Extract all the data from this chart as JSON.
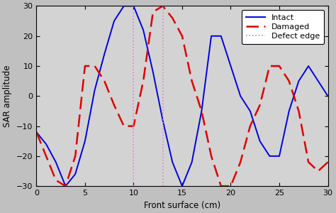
{
  "title": "",
  "xlabel": "Front surface (cm)",
  "ylabel": "SAR amplitude",
  "xlim": [
    0,
    30
  ],
  "ylim": [
    -30,
    30
  ],
  "xticks": [
    0,
    5,
    10,
    15,
    20,
    25,
    30
  ],
  "yticks": [
    -30,
    -20,
    -10,
    0,
    10,
    20,
    30
  ],
  "defect_edges": [
    10,
    13
  ],
  "intact_x": [
    0,
    1,
    2,
    3,
    4,
    5,
    6,
    7,
    8,
    9,
    10,
    11,
    12,
    13,
    14,
    15,
    16,
    17,
    18,
    19,
    20,
    21,
    22,
    23,
    24,
    25,
    26,
    27,
    28,
    29,
    30
  ],
  "intact_y": [
    -12,
    -16,
    -22,
    -30,
    -26,
    -15,
    2,
    14,
    25,
    30,
    30,
    22,
    8,
    -8,
    -22,
    -30,
    -22,
    -5,
    20,
    20,
    10,
    0,
    -5,
    -15,
    -20,
    -20,
    -5,
    5,
    10,
    5,
    0
  ],
  "damaged_x": [
    0,
    1,
    2,
    3,
    4,
    5,
    6,
    7,
    8,
    9,
    10,
    11,
    12,
    13,
    14,
    15,
    16,
    17,
    18,
    19,
    20,
    21,
    22,
    23,
    24,
    25,
    26,
    27,
    28,
    29,
    30
  ],
  "damaged_y": [
    -12,
    -20,
    -28,
    -30,
    -20,
    10,
    10,
    5,
    -3,
    -10,
    -10,
    5,
    28,
    30,
    26,
    20,
    5,
    -5,
    -20,
    -30,
    -30,
    -22,
    -10,
    -3,
    10,
    10,
    5,
    -5,
    -22,
    -25,
    -22
  ],
  "intact_color": "#0000dd",
  "damaged_color": "#dd0000",
  "defect_color": "#dd88cc",
  "legend_labels": [
    "Intact",
    "Damaged",
    "Defect edge"
  ],
  "bg_color": "#d3d3d3",
  "plot_bg_color": "#d3d3d3",
  "figsize": [
    4.74,
    3.0
  ],
  "dpi": 100
}
